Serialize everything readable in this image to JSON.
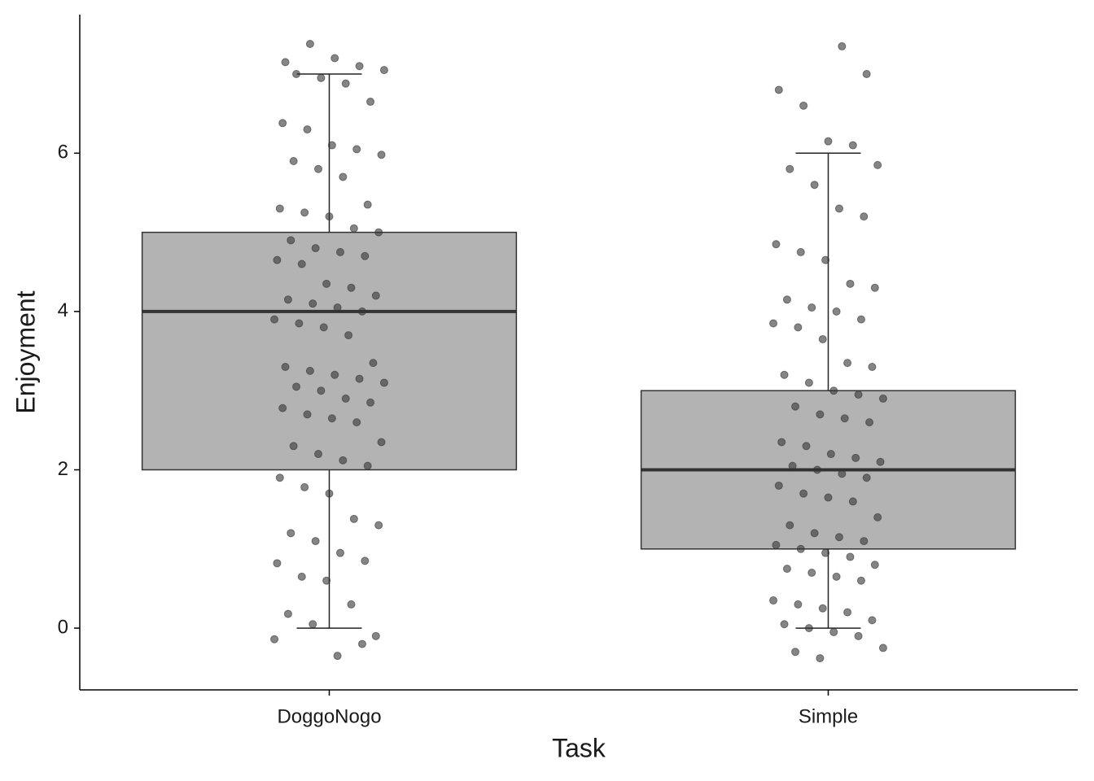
{
  "chart_data": {
    "type": "box",
    "xlabel": "Task",
    "ylabel": "Enjoyment",
    "categories": [
      "DoggoNogo",
      "Simple"
    ],
    "boxes": [
      {
        "min": 0,
        "q1": 2,
        "median": 4,
        "q3": 5,
        "max": 7
      },
      {
        "min": 0,
        "q1": 1,
        "median": 2,
        "q3": 3,
        "max": 6
      }
    ],
    "points": [
      [
        -0.14,
        -0.2,
        -0.35,
        0.05,
        0.18,
        -0.1,
        0.3,
        0.6,
        0.65,
        0.82,
        0.85,
        0.95,
        1.1,
        1.2,
        1.3,
        1.38,
        1.7,
        1.78,
        1.9,
        2.05,
        2.12,
        2.2,
        2.3,
        2.35,
        2.6,
        2.65,
        2.7,
        2.78,
        2.85,
        2.9,
        3.0,
        3.05,
        3.1,
        3.15,
        3.2,
        3.25,
        3.3,
        3.35,
        3.7,
        3.8,
        3.85,
        3.9,
        4.0,
        4.05,
        4.1,
        4.15,
        4.2,
        4.3,
        4.35,
        4.6,
        4.65,
        4.7,
        4.75,
        4.8,
        4.9,
        5.0,
        5.05,
        5.2,
        5.25,
        5.3,
        5.35,
        5.7,
        5.8,
        5.9,
        5.98,
        6.05,
        6.1,
        6.3,
        6.38,
        6.65,
        6.88,
        6.95,
        7.0,
        7.05,
        7.1,
        7.2,
        7.38,
        7.15
      ],
      [
        -0.38,
        -0.3,
        -0.25,
        -0.1,
        -0.05,
        0.0,
        0.05,
        0.1,
        0.2,
        0.25,
        0.3,
        0.35,
        0.6,
        0.65,
        0.7,
        0.75,
        0.8,
        0.9,
        0.95,
        1.0,
        1.05,
        1.1,
        1.15,
        1.2,
        1.3,
        1.4,
        1.6,
        1.65,
        1.7,
        1.8,
        1.9,
        1.95,
        2.0,
        2.05,
        2.1,
        2.15,
        2.2,
        2.3,
        2.35,
        2.6,
        2.65,
        2.7,
        2.8,
        2.9,
        2.95,
        3.0,
        3.1,
        3.2,
        3.3,
        3.35,
        3.65,
        3.8,
        3.85,
        3.9,
        4.0,
        4.05,
        4.15,
        4.3,
        4.35,
        4.65,
        4.75,
        4.85,
        5.2,
        5.3,
        5.6,
        5.8,
        5.85,
        6.1,
        6.15,
        6.6,
        6.8,
        7.0,
        7.35
      ]
    ],
    "box_color": "#b3b3b3",
    "point_color": "#333333",
    "ylim": [
      -0.78,
      7.75
    ],
    "yticks": [
      0,
      2,
      4,
      6
    ]
  }
}
